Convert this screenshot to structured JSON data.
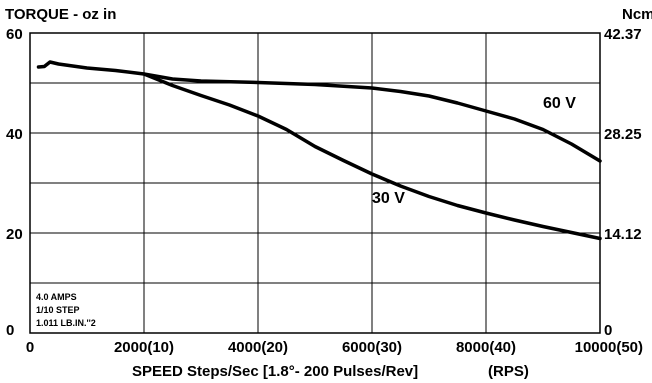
{
  "chart_data": {
    "type": "line",
    "title_left": "TORQUE - oz in",
    "title_right": "Ncm",
    "xlabel": "SPEED Steps/Sec [1.8°- 200 Pulses/Rev]",
    "xlabel_secondary": "(RPS)",
    "xlim": [
      0,
      10000
    ],
    "ylim": [
      0,
      60
    ],
    "grid": true,
    "x_ticks": [
      {
        "value": 0,
        "label": "0"
      },
      {
        "value": 2000,
        "label": "2000(10)"
      },
      {
        "value": 4000,
        "label": "4000(20)"
      },
      {
        "value": 6000,
        "label": "6000(30)"
      },
      {
        "value": 8000,
        "label": "8000(40)"
      },
      {
        "value": 10000,
        "label": "10000(50)"
      }
    ],
    "y_ticks_left": [
      {
        "value": 0,
        "label": "0"
      },
      {
        "value": 20,
        "label": "20"
      },
      {
        "value": 40,
        "label": "40"
      },
      {
        "value": 60,
        "label": "60"
      }
    ],
    "y_ticks_right": [
      {
        "value": 0,
        "label": "0"
      },
      {
        "value": 20,
        "label": "14.12"
      },
      {
        "value": 40,
        "label": "28.25"
      },
      {
        "value": 60,
        "label": "42.37"
      }
    ],
    "annotations": [
      "4.0 AMPS",
      "1/10 STEP",
      "1.011 LB.IN.''2"
    ],
    "series": [
      {
        "name": "60 V",
        "color": "#000000",
        "x": [
          150,
          250,
          350,
          500,
          1000,
          1500,
          2000,
          2500,
          3000,
          4000,
          5000,
          6000,
          6500,
          7000,
          7500,
          8000,
          8500,
          9000,
          9500,
          10000
        ],
        "y": [
          53.2,
          53.3,
          54.2,
          53.8,
          53.0,
          52.5,
          51.8,
          50.8,
          50.4,
          50.1,
          49.7,
          49.0,
          48.3,
          47.4,
          46.0,
          44.4,
          42.8,
          40.7,
          37.8,
          34.4
        ]
      },
      {
        "name": "30 V",
        "color": "#000000",
        "x": [
          2000,
          2500,
          3000,
          3500,
          4000,
          4500,
          5000,
          5500,
          6000,
          6500,
          7000,
          7500,
          8000,
          8500,
          9000,
          9500,
          10000
        ],
        "y": [
          51.8,
          49.5,
          47.5,
          45.6,
          43.4,
          40.7,
          37.3,
          34.5,
          31.8,
          29.4,
          27.3,
          25.5,
          24.0,
          22.6,
          21.3,
          20.1,
          18.9
        ]
      }
    ],
    "series_labels": [
      {
        "series": "60 V",
        "text": "60 V",
        "x": 9000,
        "y": 45
      },
      {
        "series": "30 V",
        "text": "30 V",
        "x": 6000,
        "y": 26
      }
    ]
  }
}
